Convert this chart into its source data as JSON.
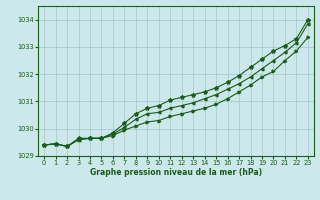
{
  "x": [
    0,
    1,
    2,
    3,
    4,
    5,
    6,
    7,
    8,
    9,
    10,
    11,
    12,
    13,
    14,
    15,
    16,
    17,
    18,
    19,
    20,
    21,
    22,
    23
  ],
  "line1": [
    1029.4,
    1029.45,
    1029.35,
    1029.6,
    1029.65,
    1029.65,
    1029.75,
    1029.95,
    1030.1,
    1030.25,
    1030.3,
    1030.45,
    1030.55,
    1030.65,
    1030.75,
    1030.9,
    1031.1,
    1031.35,
    1031.6,
    1031.9,
    1032.1,
    1032.5,
    1032.85,
    1033.35
  ],
  "line2": [
    1029.4,
    1029.45,
    1029.35,
    1029.6,
    1029.65,
    1029.65,
    1029.8,
    1030.05,
    1030.35,
    1030.55,
    1030.6,
    1030.75,
    1030.85,
    1030.95,
    1031.1,
    1031.25,
    1031.45,
    1031.65,
    1031.9,
    1032.2,
    1032.5,
    1032.8,
    1033.15,
    1033.85
  ],
  "line3": [
    1029.4,
    1029.45,
    1029.35,
    1029.65,
    1029.65,
    1029.65,
    1029.85,
    1030.2,
    1030.55,
    1030.75,
    1030.85,
    1031.05,
    1031.15,
    1031.25,
    1031.35,
    1031.5,
    1031.7,
    1031.95,
    1032.25,
    1032.55,
    1032.85,
    1033.05,
    1033.3,
    1034.0
  ],
  "ylim": [
    1029.0,
    1034.5
  ],
  "yticks": [
    1029,
    1030,
    1031,
    1032,
    1033,
    1034
  ],
  "xlim": [
    -0.5,
    23.5
  ],
  "xticks": [
    0,
    1,
    2,
    3,
    4,
    5,
    6,
    7,
    8,
    9,
    10,
    11,
    12,
    13,
    14,
    15,
    16,
    17,
    18,
    19,
    20,
    21,
    22,
    23
  ],
  "xlabel": "Graphe pression niveau de la mer (hPa)",
  "bg_color": "#cce8ea",
  "line_color": "#1a5c1a",
  "grid_color": "#a0c8c8",
  "xlabel_color": "#1a5c1a",
  "tick_labelsize": 4.8,
  "xlabel_fontsize": 5.5,
  "lw": 0.8,
  "ms": 2.0
}
